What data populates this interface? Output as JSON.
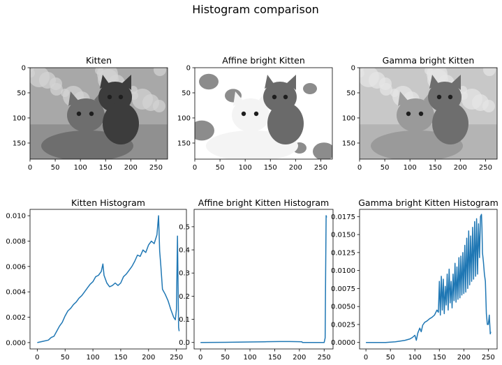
{
  "figure": {
    "title": "Histogram comparison"
  },
  "chart_data": [
    {
      "type": "image",
      "title": "Kitten",
      "xlim": [
        0,
        273
      ],
      "ylim": [
        0,
        182
      ],
      "xticks": [
        0,
        50,
        100,
        150,
        200,
        250
      ],
      "yticks": [
        0,
        50,
        100,
        150
      ],
      "grayscale": true
    },
    {
      "type": "image",
      "title": "Affine bright Kitten",
      "xlim": [
        0,
        273
      ],
      "ylim": [
        0,
        182
      ],
      "xticks": [
        0,
        50,
        100,
        150,
        200,
        250
      ],
      "yticks": [
        0,
        50,
        100,
        150
      ],
      "grayscale": true
    },
    {
      "type": "image",
      "title": "Gamma bright Kitten",
      "xlim": [
        0,
        273
      ],
      "ylim": [
        0,
        182
      ],
      "xticks": [
        0,
        50,
        100,
        150,
        200,
        250
      ],
      "yticks": [
        0,
        50,
        100,
        150
      ],
      "grayscale": true
    },
    {
      "type": "line",
      "title": "Kitten Histogram",
      "xlim": [
        -13,
        268
      ],
      "ylim": [
        -0.0005,
        0.0105
      ],
      "xticks": [
        0,
        50,
        100,
        150,
        200,
        250
      ],
      "yticks": [
        0.0,
        0.002,
        0.004,
        0.006,
        0.008,
        0.01
      ],
      "ytick_labels": [
        "0.000",
        "0.002",
        "0.004",
        "0.006",
        "0.008",
        "0.010"
      ],
      "color": "#1f77b4",
      "x": [
        0,
        10,
        20,
        25,
        30,
        35,
        40,
        45,
        50,
        55,
        60,
        65,
        70,
        75,
        80,
        85,
        90,
        95,
        100,
        105,
        110,
        115,
        118,
        120,
        125,
        130,
        135,
        140,
        145,
        150,
        155,
        160,
        165,
        170,
        175,
        180,
        185,
        190,
        195,
        200,
        205,
        210,
        215,
        218,
        220,
        222,
        225,
        230,
        235,
        240,
        245,
        248,
        250,
        252,
        254,
        255
      ],
      "y": [
        0.0,
        0.0001,
        0.0002,
        0.0004,
        0.0005,
        0.0009,
        0.0013,
        0.0016,
        0.0021,
        0.0025,
        0.0027,
        0.003,
        0.0032,
        0.0035,
        0.0037,
        0.004,
        0.0043,
        0.0046,
        0.0048,
        0.0052,
        0.0053,
        0.0056,
        0.0062,
        0.0053,
        0.0047,
        0.0044,
        0.0045,
        0.0047,
        0.0045,
        0.0047,
        0.0052,
        0.0054,
        0.0057,
        0.006,
        0.0064,
        0.0069,
        0.0068,
        0.0073,
        0.0071,
        0.0077,
        0.008,
        0.0078,
        0.0085,
        0.01,
        0.0072,
        0.0061,
        0.0042,
        0.0038,
        0.0033,
        0.0026,
        0.002,
        0.0018,
        0.0026,
        0.0084,
        0.0012,
        0.0009
      ]
    },
    {
      "type": "line",
      "title": "Affine bright Kitten Histogram",
      "xlim": [
        -13,
        268
      ],
      "ylim": [
        -0.028,
        0.575
      ],
      "xticks": [
        0,
        50,
        100,
        150,
        200,
        250
      ],
      "yticks": [
        0.0,
        0.1,
        0.2,
        0.3,
        0.4,
        0.5
      ],
      "ytick_labels": [
        "0.0",
        "0.1",
        "0.2",
        "0.3",
        "0.4",
        "0.5"
      ],
      "color": "#1f77b4",
      "x": [
        0,
        50,
        100,
        130,
        160,
        180,
        200,
        205,
        206,
        250,
        252,
        253,
        254,
        255
      ],
      "y": [
        0.0,
        0.0005,
        0.002,
        0.003,
        0.004,
        0.004,
        0.0035,
        0.003,
        0.0,
        0.0,
        0.02,
        0.3,
        0.548,
        0.54
      ]
    },
    {
      "type": "line",
      "title": "Gamma bright Kitten Histogram",
      "xlim": [
        -13,
        268
      ],
      "ylim": [
        -0.0009,
        0.0185
      ],
      "xticks": [
        0,
        50,
        100,
        150,
        200,
        250
      ],
      "yticks": [
        0.0,
        0.0025,
        0.005,
        0.0075,
        0.01,
        0.0125,
        0.015,
        0.0175
      ],
      "ytick_labels": [
        "0.0000",
        "0.0025",
        "0.0050",
        "0.0075",
        "0.0100",
        "0.0125",
        "0.0150",
        "0.0175"
      ],
      "color": "#1f77b4",
      "x": [
        0,
        40,
        60,
        70,
        80,
        90,
        95,
        100,
        103,
        106,
        110,
        113,
        116,
        120,
        125,
        130,
        135,
        140,
        145,
        148,
        150,
        152,
        154,
        156,
        158,
        160,
        162,
        164,
        166,
        168,
        170,
        172,
        174,
        176,
        178,
        180,
        182,
        184,
        186,
        188,
        190,
        192,
        194,
        196,
        198,
        200,
        202,
        204,
        206,
        208,
        210,
        212,
        214,
        216,
        218,
        220,
        222,
        224,
        226,
        228,
        230,
        232,
        234,
        236,
        237,
        238,
        240,
        242,
        244,
        246,
        248,
        250,
        252,
        254,
        255
      ],
      "y": [
        0.0,
        0.0,
        0.0001,
        0.0002,
        0.0003,
        0.0005,
        0.0007,
        0.001,
        0.0003,
        0.0013,
        0.002,
        0.0015,
        0.0024,
        0.0028,
        0.003,
        0.0033,
        0.0035,
        0.0038,
        0.0045,
        0.0042,
        0.0085,
        0.0038,
        0.0092,
        0.0045,
        0.0088,
        0.004,
        0.0078,
        0.0052,
        0.0095,
        0.0045,
        0.0102,
        0.0055,
        0.0085,
        0.0048,
        0.0095,
        0.0058,
        0.011,
        0.0056,
        0.0105,
        0.006,
        0.0118,
        0.0062,
        0.012,
        0.0066,
        0.0125,
        0.0068,
        0.0135,
        0.007,
        0.0145,
        0.0075,
        0.0155,
        0.008,
        0.0148,
        0.0085,
        0.016,
        0.0088,
        0.0168,
        0.0092,
        0.0172,
        0.0095,
        0.0165,
        0.0118,
        0.0175,
        0.0178,
        0.016,
        0.0125,
        0.0112,
        0.0095,
        0.0085,
        0.004,
        0.0025,
        0.0025,
        0.0038,
        0.0012,
        0.0015
      ]
    }
  ]
}
